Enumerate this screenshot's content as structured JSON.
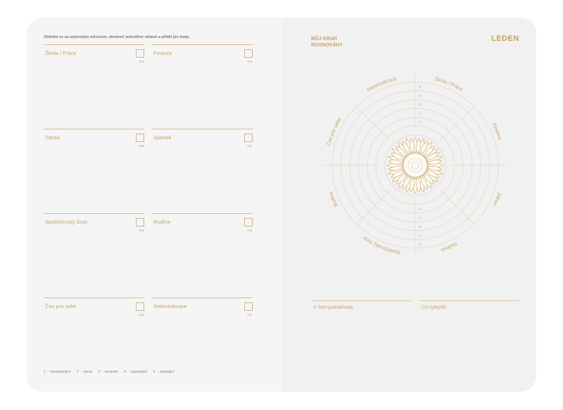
{
  "left": {
    "intro": "Ohlédni se za uplynulým měsícem, zhodnoť jednotlivé oblasti a přiděl jim body.",
    "range": "1-5",
    "areas": [
      "Škola / Práce",
      "Finance",
      "Zdraví",
      "Spánek",
      "Společenský život",
      "Rodina",
      "Čas pro sebe",
      "Seberealizace"
    ],
    "legend": [
      "1 - neuspokojivé",
      "2 - výzva",
      "3 - neutrální",
      "4 - uspokojivé",
      "5 - vynikající"
    ]
  },
  "right": {
    "title_line1": "MŮJ KRUH",
    "title_line2": "ROVNOVÁHY",
    "month": "LEDEN",
    "wheel_labels": [
      "Škola / Práce",
      "Finance",
      "Zdraví",
      "Spánek",
      "Společenský život",
      "Rodina",
      "Čas pro sebe",
      "Seberealizace"
    ],
    "scale": [
      "1",
      "2",
      "3",
      "4",
      "5"
    ],
    "continue_label": "V čem pokračovat:",
    "improve_label": "Co vylepšit:"
  },
  "colors": {
    "accent": "#c2a461",
    "line": "#e2d6bf"
  }
}
